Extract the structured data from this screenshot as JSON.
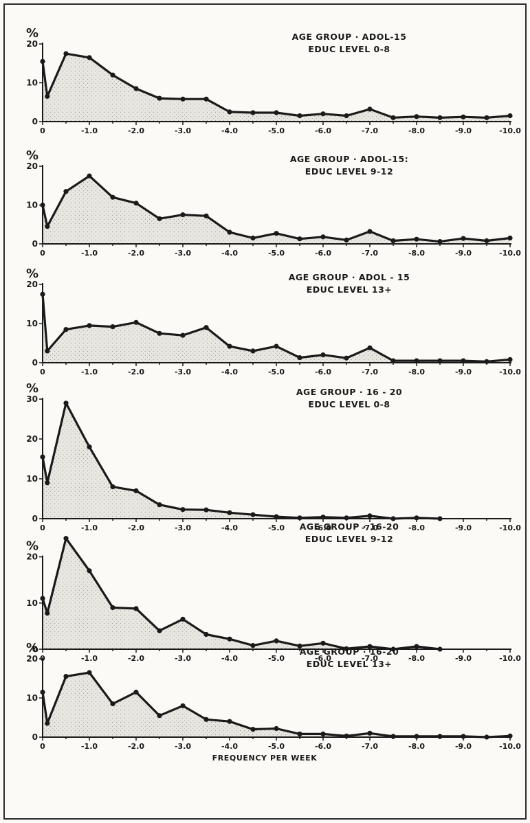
{
  "chart_data": [
    {
      "type": "area",
      "title_lines": [
        "AGE GROUP · ADOL-15",
        "EDUC LEVEL 0-8"
      ],
      "ylabel": "%",
      "yticks": [
        0,
        10,
        20
      ],
      "ylim": [
        0,
        20
      ],
      "xlim": [
        0,
        10
      ],
      "x_ticks": [
        0,
        1,
        2,
        3,
        4,
        5,
        6,
        7,
        8,
        9,
        10
      ],
      "x_tick_labels": [
        "0",
        "-1.0",
        "-2.0",
        "-3.0",
        "-4.0",
        "-5.0",
        "-6.0",
        "-7.0",
        "-8.0",
        "-9.0",
        "-10.0"
      ],
      "x": [
        0,
        0.1,
        0.5,
        1.0,
        1.5,
        2.0,
        2.5,
        3.0,
        3.5,
        4.0,
        4.5,
        5.0,
        5.5,
        6.0,
        6.5,
        7.0,
        7.5,
        8.0,
        8.5,
        9.0,
        9.5,
        10.0
      ],
      "values": [
        15.5,
        6.5,
        17.5,
        16.5,
        12,
        8.5,
        6,
        5.8,
        5.8,
        2.5,
        2.3,
        2.3,
        1.5,
        2,
        1.5,
        3.2,
        1,
        1.3,
        1,
        1.2,
        1,
        1.5
      ]
    },
    {
      "type": "area",
      "title_lines": [
        "AGE GROUP · ADOL-15:",
        "EDUC LEVEL 9-12"
      ],
      "ylabel": "%",
      "yticks": [
        0,
        10,
        20
      ],
      "ylim": [
        0,
        20
      ],
      "xlim": [
        0,
        10
      ],
      "x_ticks": [
        0,
        1,
        2,
        3,
        4,
        5,
        6,
        7,
        8,
        9,
        10
      ],
      "x_tick_labels": [
        "0",
        "-1.0",
        "-2.0",
        "-3.0",
        "-4.0",
        "-5.0",
        "-6.0",
        "-7.0",
        "-8.0",
        "-9.0",
        "-10.0"
      ],
      "x": [
        0,
        0.1,
        0.5,
        1.0,
        1.5,
        2.0,
        2.5,
        3.0,
        3.5,
        4.0,
        4.5,
        5.0,
        5.5,
        6.0,
        6.5,
        7.0,
        7.5,
        8.0,
        8.5,
        9.0,
        9.5,
        10.0
      ],
      "values": [
        10,
        4.5,
        13.5,
        17.5,
        12,
        10.5,
        6.5,
        7.5,
        7.2,
        3,
        1.5,
        2.7,
        1.3,
        1.8,
        1,
        3.2,
        0.8,
        1.2,
        0.6,
        1.4,
        0.8,
        1.5
      ]
    },
    {
      "type": "area",
      "title_lines": [
        "AGE GROUP · ADOL - 15",
        "EDUC LEVEL 13+"
      ],
      "ylabel": "%",
      "yticks": [
        0,
        10,
        20
      ],
      "ylim": [
        0,
        20
      ],
      "xlim": [
        0,
        10
      ],
      "x_ticks": [
        0,
        1,
        2,
        3,
        4,
        5,
        6,
        7,
        8,
        9,
        10
      ],
      "x_tick_labels": [
        "0",
        "-1.0",
        "-2.0",
        "-3.0",
        "-4.0",
        "-5.0",
        "-6.0",
        "-7.0",
        "-8.0",
        "-9.0",
        "-10.0"
      ],
      "x": [
        0,
        0.1,
        0.5,
        1.0,
        1.5,
        2.0,
        2.5,
        3.0,
        3.5,
        4.0,
        4.5,
        5.0,
        5.5,
        6.0,
        6.5,
        7.0,
        7.5,
        8.0,
        8.5,
        9.0,
        9.5,
        10.0
      ],
      "values": [
        17.5,
        3,
        8.5,
        9.5,
        9.2,
        10.3,
        7.5,
        7,
        9,
        4.2,
        3,
        4.2,
        1.3,
        2,
        1.2,
        3.8,
        0.5,
        0.5,
        0.5,
        0.5,
        0.3,
        0.8
      ]
    },
    {
      "type": "area",
      "title_lines": [
        "AGE GROUP · 16 - 20",
        "EDUC LEVEL 0-8"
      ],
      "ylabel": "%",
      "yticks": [
        0,
        10,
        20,
        30
      ],
      "ylim": [
        0,
        30
      ],
      "xlim": [
        0,
        10
      ],
      "x_ticks": [
        0,
        1,
        2,
        3,
        4,
        5,
        6,
        7,
        8,
        9,
        10
      ],
      "x_tick_labels": [
        "0",
        "-1.0",
        "-2.0",
        "-3.0",
        "-4.0",
        "-5.0",
        "-6.0",
        "-7.0",
        "-8.0",
        "-9.0",
        "-10.0"
      ],
      "x": [
        0,
        0.1,
        0.5,
        1.0,
        1.5,
        2.0,
        2.5,
        3.0,
        3.5,
        4.0,
        4.5,
        5.0,
        5.5,
        6.0,
        6.5,
        7.0,
        7.5,
        8.0,
        8.5
      ],
      "values": [
        15.5,
        9,
        29,
        18,
        8,
        7,
        3.5,
        2.3,
        2.2,
        1.5,
        1,
        0.5,
        0.2,
        0.4,
        0.2,
        0.7,
        0,
        0.2,
        0
      ]
    },
    {
      "type": "area",
      "title_lines": [
        "AGE GROUP · 16-20",
        "EDUC LEVEL 9-12"
      ],
      "ylabel": "%",
      "yticks": [
        0,
        10,
        20
      ],
      "ylim": [
        0,
        25
      ],
      "xlim": [
        0,
        10
      ],
      "x_ticks": [
        0,
        1,
        2,
        3,
        4,
        5,
        6,
        7,
        8,
        9,
        10
      ],
      "x_tick_labels": [
        "0",
        "-1.0",
        "-2.0",
        "-3.0",
        "-4.0",
        "-5.0",
        "-6.0",
        "-7.0",
        "-8.0",
        "-9.0",
        "-10.0"
      ],
      "x": [
        0,
        0.1,
        0.5,
        1.0,
        1.5,
        2.0,
        2.5,
        3.0,
        3.5,
        4.0,
        4.5,
        5.0,
        5.5,
        6.0,
        6.5,
        7.0,
        7.5,
        8.0,
        8.5
      ],
      "values": [
        11,
        7.8,
        24,
        17,
        9,
        8.8,
        4,
        6.5,
        3.2,
        2.2,
        0.8,
        1.8,
        0.7,
        1.3,
        0.1,
        0.6,
        0,
        0.6,
        0
      ]
    },
    {
      "type": "area",
      "title_lines": [
        "AGE GROUP · 16-20",
        "EDUC LEVEL 13+"
      ],
      "ylabel": "%",
      "yticks": [
        0,
        10,
        20
      ],
      "ylim": [
        0,
        20
      ],
      "xlim": [
        0,
        10
      ],
      "x_ticks": [
        0,
        1,
        2,
        3,
        4,
        5,
        6,
        7,
        8,
        9,
        10
      ],
      "x_tick_labels": [
        "0",
        "-1.0",
        "-2.0",
        "-3.0",
        "-4.0",
        "-5.0",
        "-6.0",
        "-7.0",
        "-8.0",
        "-9.0",
        "-10.0"
      ],
      "x": [
        0,
        0.1,
        0.5,
        1.0,
        1.5,
        2.0,
        2.5,
        3.0,
        3.5,
        4.0,
        4.5,
        5.0,
        5.5,
        6.0,
        6.5,
        7.0,
        7.5,
        8.0,
        8.5,
        9.0,
        9.5,
        10.0
      ],
      "values": [
        11.5,
        3.5,
        15.5,
        16.5,
        8.5,
        11.5,
        5.5,
        8,
        4.5,
        4,
        2,
        2.2,
        0.8,
        0.8,
        0.3,
        1,
        0.2,
        0.2,
        0.2,
        0.2,
        0,
        0.3
      ],
      "xlabel": "FREQUENCY PER WEEK"
    }
  ]
}
